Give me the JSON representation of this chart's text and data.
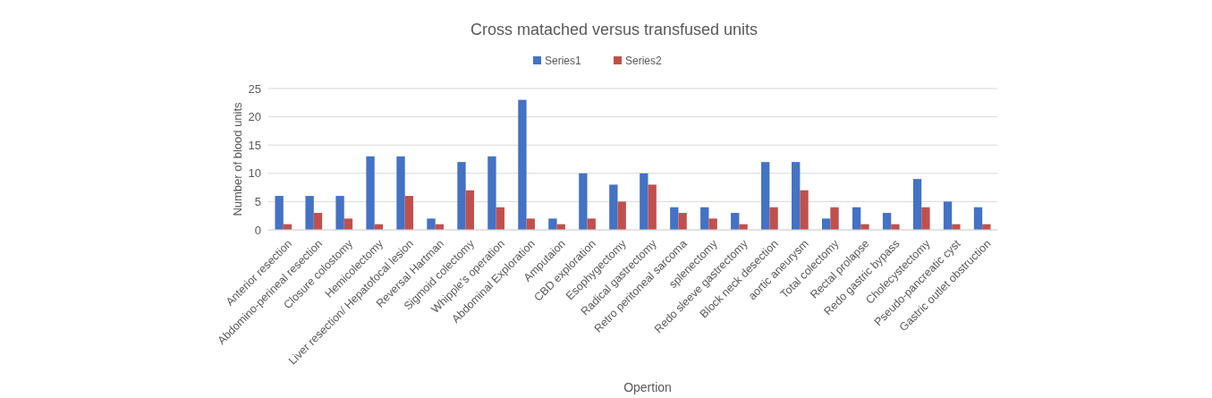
{
  "chart_data": {
    "type": "bar",
    "title": "Cross matached versus transfused units",
    "xlabel": "Opertion",
    "ylabel": "Number of blood units",
    "categories": [
      "Anterior resection",
      "Abdomino-perineal resection",
      "Closure colostomy",
      "Hemicolectomy",
      "Liver resection/ Hepatofocal lesion",
      "Reversal Hartman",
      "Sigmoid colectomy",
      "Whipple’s operation",
      "Abdominal Exploration",
      "Amputaion",
      "CBD exploration",
      "Esophygectomy",
      "Radical gastrectomy",
      "Retro peritoneal sarcoma",
      "splenectomy",
      "Redo sleeve gastrectomy",
      "Block neck desection",
      "aortic aneurysm",
      "Total colectomy",
      "Rectal prolapse",
      "Redo gastric bypass",
      "Cholecystectomy",
      "Pseudo-pancreatic cyst",
      "Gastric outlet obstruction"
    ],
    "series": [
      {
        "name": "Series1",
        "color": "#4472c4",
        "values": [
          6,
          6,
          6,
          13,
          13,
          2,
          12,
          13,
          23,
          2,
          10,
          8,
          10,
          4,
          4,
          3,
          12,
          12,
          2,
          4,
          3,
          9,
          5,
          4
        ]
      },
      {
        "name": "Series2",
        "color": "#c0504d",
        "values": [
          1,
          3,
          2,
          1,
          6,
          1,
          7,
          4,
          2,
          1,
          2,
          5,
          8,
          3,
          2,
          1,
          4,
          7,
          4,
          1,
          1,
          4,
          1,
          1
        ]
      }
    ],
    "ylim": [
      0,
      25
    ],
    "yticks": [
      0,
      5,
      10,
      15,
      20,
      25
    ],
    "grid": "y",
    "legend": "top"
  }
}
